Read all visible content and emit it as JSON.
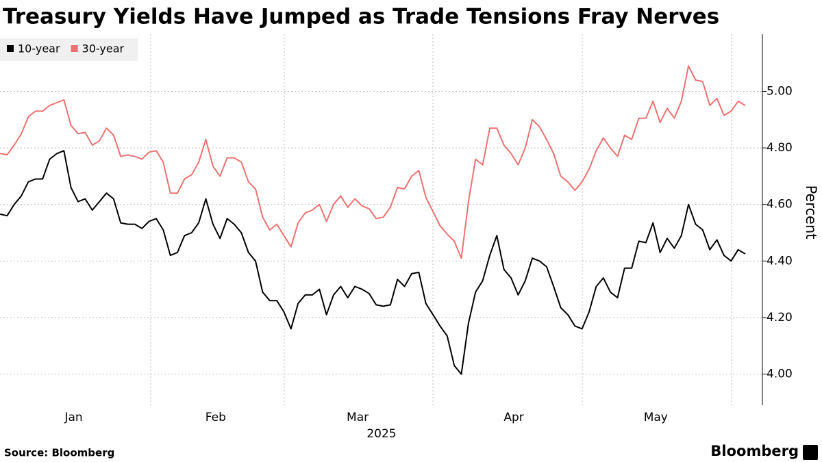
{
  "chart_data": {
    "type": "line",
    "title": "Treasury Yields Have Jumped as Trade Tensions Fray Nerves",
    "y_label": "Percent",
    "x_label": "2025",
    "source": "Source: Bloomberg",
    "brand": "Bloomberg",
    "categories": [
      null,
      null,
      null,
      null,
      null,
      null,
      null,
      null,
      null,
      null,
      "Jan",
      null,
      null,
      null,
      null,
      null,
      null,
      null,
      null,
      null,
      null,
      null,
      null,
      null,
      null,
      null,
      null,
      null,
      null,
      null,
      "Feb",
      null,
      null,
      null,
      null,
      null,
      null,
      null,
      null,
      null,
      null,
      null,
      null,
      null,
      null,
      null,
      null,
      null,
      null,
      null,
      "Mar",
      null,
      null,
      null,
      null,
      null,
      null,
      null,
      null,
      null,
      null,
      null,
      null,
      null,
      null,
      null,
      null,
      null,
      null,
      null,
      null,
      null,
      "Apr",
      null,
      null,
      null,
      null,
      null,
      null,
      null,
      null,
      null,
      null,
      null,
      null,
      null,
      null,
      null,
      null,
      null,
      null,
      null,
      "May",
      null,
      null,
      null,
      null,
      null,
      null,
      null,
      null,
      null,
      null,
      null,
      null,
      null
    ],
    "series": [
      {
        "name": "10-year",
        "color": "#000000",
        "values": [
          4.566,
          4.56,
          4.6,
          4.63,
          4.68,
          4.69,
          4.69,
          4.76,
          4.78,
          4.79,
          4.66,
          4.61,
          4.62,
          4.58,
          4.61,
          4.64,
          4.62,
          4.535,
          4.53,
          4.53,
          4.515,
          4.54,
          4.55,
          4.51,
          4.42,
          4.43,
          4.49,
          4.5,
          4.535,
          4.62,
          4.53,
          4.48,
          4.55,
          4.53,
          4.5,
          4.43,
          4.4,
          4.29,
          4.26,
          4.26,
          4.22,
          4.16,
          4.25,
          4.28,
          4.28,
          4.3,
          4.21,
          4.28,
          4.31,
          4.27,
          4.31,
          4.3,
          4.285,
          4.245,
          4.24,
          4.245,
          4.335,
          4.31,
          4.355,
          4.36,
          4.25,
          4.21,
          4.17,
          4.135,
          4.03,
          4.0,
          4.18,
          4.29,
          4.33,
          4.42,
          4.49,
          4.37,
          4.34,
          4.28,
          4.33,
          4.41,
          4.4,
          4.38,
          4.31,
          4.235,
          4.21,
          4.17,
          4.16,
          4.22,
          4.31,
          4.34,
          4.29,
          4.27,
          4.375,
          4.375,
          4.47,
          4.465,
          4.535,
          4.43,
          4.48,
          4.445,
          4.49,
          4.6,
          4.53,
          4.51,
          4.44,
          4.475,
          4.42,
          4.4,
          4.44,
          4.425
        ]
      },
      {
        "name": "30-year",
        "color": "#f07070",
        "values": [
          4.78,
          4.776,
          4.81,
          4.85,
          4.91,
          4.93,
          4.93,
          4.95,
          4.96,
          4.97,
          4.88,
          4.85,
          4.855,
          4.81,
          4.825,
          4.87,
          4.845,
          4.77,
          4.775,
          4.77,
          4.76,
          4.785,
          4.79,
          4.75,
          4.64,
          4.64,
          4.69,
          4.705,
          4.75,
          4.83,
          4.735,
          4.7,
          4.765,
          4.765,
          4.75,
          4.68,
          4.655,
          4.555,
          4.51,
          4.53,
          4.49,
          4.45,
          4.535,
          4.57,
          4.58,
          4.6,
          4.54,
          4.6,
          4.63,
          4.59,
          4.62,
          4.595,
          4.585,
          4.55,
          4.555,
          4.59,
          4.66,
          4.655,
          4.7,
          4.72,
          4.625,
          4.575,
          4.525,
          4.495,
          4.47,
          4.41,
          4.61,
          4.76,
          4.74,
          4.87,
          4.87,
          4.81,
          4.78,
          4.74,
          4.8,
          4.9,
          4.875,
          4.83,
          4.78,
          4.7,
          4.68,
          4.65,
          4.68,
          4.725,
          4.79,
          4.835,
          4.8,
          4.77,
          4.845,
          4.83,
          4.905,
          4.905,
          4.965,
          4.89,
          4.94,
          4.905,
          4.965,
          5.09,
          5.04,
          5.035,
          4.95,
          4.975,
          4.915,
          4.93,
          4.965,
          4.95
        ]
      }
    ],
    "ylim": [
      3.89,
      5.19
    ],
    "yticks": [
      {
        "value": 4,
        "label": "4.00"
      },
      {
        "value": 4.2,
        "label": "4.20"
      },
      {
        "value": 4.4,
        "label": "4.40"
      },
      {
        "value": 4.6,
        "label": "4.60"
      },
      {
        "value": 4.8,
        "label": "4.80"
      },
      {
        "value": 5,
        "label": "5.00"
      }
    ],
    "grid": true,
    "legend": "top-left"
  }
}
